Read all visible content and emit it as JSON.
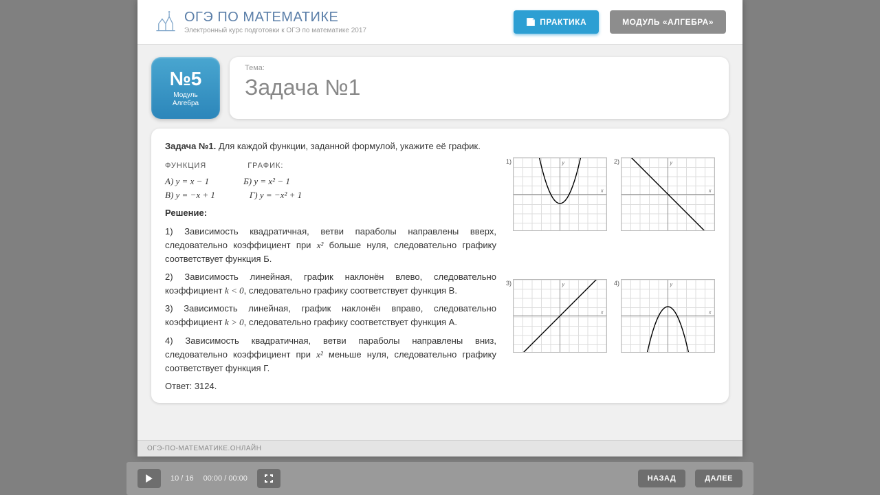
{
  "header": {
    "brand_prefix": "ОГЭ ПО ",
    "brand_strong": "МАТЕМАТИКЕ",
    "tagline": "Электронный курс подготовки к ОГЭ по математике 2017",
    "practice_btn": "ПРАКТИКА",
    "module_btn": "МОДУЛЬ «АЛГЕБРА»"
  },
  "badge": {
    "number": "№5",
    "sub1": "Модуль",
    "sub2": "Алгебра"
  },
  "title": {
    "topic_label": "Тема:",
    "heading": "Задача №1"
  },
  "task": {
    "title_bold": "Задача №1.",
    "title_rest": " Для каждой функции, заданной формулой, укажите её график.",
    "func_label": "ФУНКЦИЯ",
    "graph_label": "ГРАФИК:",
    "funcs": {
      "a": "А) y = x − 1",
      "b": "Б) y = x² − 1",
      "v": "В) y = −x + 1",
      "g": "Г) y = −x² + 1"
    },
    "solution_heading": "Решение:",
    "paragraphs": [
      "1) Зависимость квадратичная, ветви параболы направлены вверх, следовательно коэффициент при x² больше нуля, следовательно графику соответствует функция Б.",
      "2) Зависимость линейная, график наклонён влево, следовательно коэффициент k < 0, следовательно графику соответствует функция В.",
      "3) Зависимость линейная, график наклонён вправо, следовательно коэффициент k > 0, следовательно графику соответствует функция А.",
      "4) Зависимость квадратичная, ветви параболы направлены вниз, следовательно коэффициент при x² меньше нуля, следовательно графику соответствует функция Г."
    ],
    "answer_label": "Ответ:",
    "answer_value": " 3124."
  },
  "graphs": {
    "grid": {
      "w": 135,
      "h": 105,
      "cell": 13.5,
      "stroke": "#dddddd",
      "axis_stroke": "#888888",
      "curve_stroke": "#000000",
      "curve_width": 1.4
    },
    "items": [
      {
        "num": "1)",
        "type": "parabola_up",
        "xlabel": "x",
        "ylabel": "y"
      },
      {
        "num": "2)",
        "type": "line_down",
        "xlabel": "x",
        "ylabel": "y"
      },
      {
        "num": "3)",
        "type": "line_up",
        "xlabel": "x",
        "ylabel": "y"
      },
      {
        "num": "4)",
        "type": "parabola_down",
        "xlabel": "x",
        "ylabel": "y"
      }
    ]
  },
  "breadcrumb": "ОГЭ-ПО-МАТЕМАТИКЕ.ОНЛАЙН",
  "player": {
    "position": "10 / 16",
    "time": "00:00 / 00:00",
    "back": "НАЗАД",
    "next": "ДАЛЕЕ"
  }
}
